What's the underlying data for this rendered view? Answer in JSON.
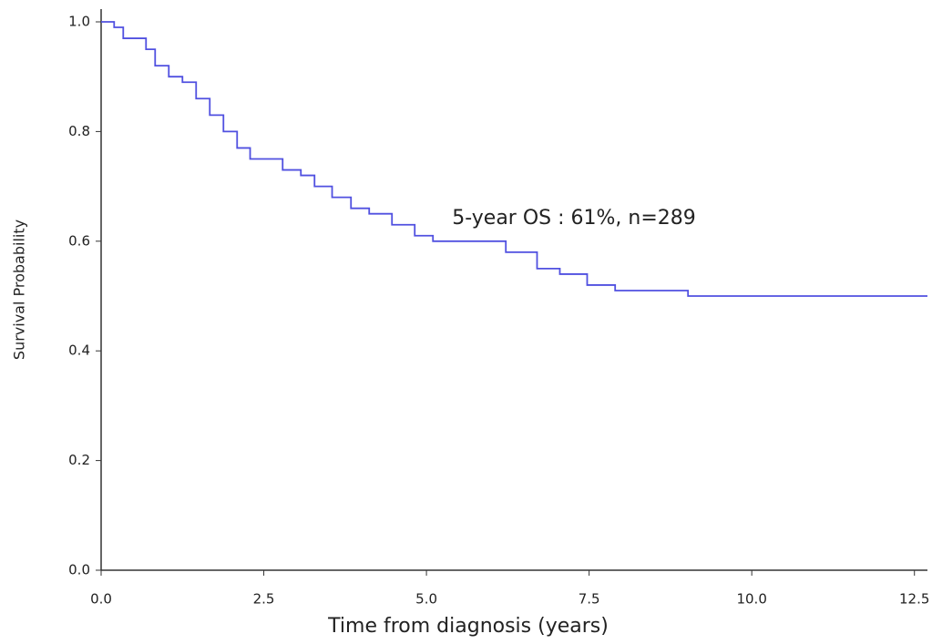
{
  "chart_data": {
    "type": "step",
    "xlabel": "Time from diagnosis (years)",
    "ylabel": "Survival Probability",
    "annotation": "5-year OS : 61%, n=289",
    "color": "#5050e0",
    "x": [
      0,
      0.2,
      0.34,
      0.55,
      0.69,
      0.83,
      1.04,
      1.25,
      1.46,
      1.67,
      1.88,
      2.09,
      2.29,
      2.51,
      2.79,
      3.07,
      3.28,
      3.55,
      3.84,
      4.12,
      4.47,
      4.82,
      5.1,
      5.87,
      6.22,
      6.7,
      7.05,
      7.47,
      7.9,
      9.02,
      12.7
    ],
    "values": [
      1.0,
      0.99,
      0.97,
      0.97,
      0.95,
      0.92,
      0.9,
      0.89,
      0.86,
      0.83,
      0.8,
      0.77,
      0.75,
      0.75,
      0.73,
      0.72,
      0.7,
      0.68,
      0.66,
      0.65,
      0.63,
      0.61,
      0.6,
      0.6,
      0.58,
      0.55,
      0.54,
      0.52,
      0.51,
      0.5,
      0.5
    ],
    "xlim": [
      0,
      12.7
    ],
    "ylim": [
      0,
      1
    ],
    "xticks": [
      {
        "value": 0,
        "label": "0.0"
      },
      2.5,
      {
        "value": 5,
        "label": "5.0"
      },
      7.5,
      {
        "value": 10,
        "label": "10.0"
      },
      12.5
    ],
    "yticks": [
      {
        "value": 0,
        "label": "0.0"
      },
      0.2,
      0.4,
      0.6,
      0.8,
      {
        "value": 1,
        "label": "1.0"
      }
    ]
  }
}
